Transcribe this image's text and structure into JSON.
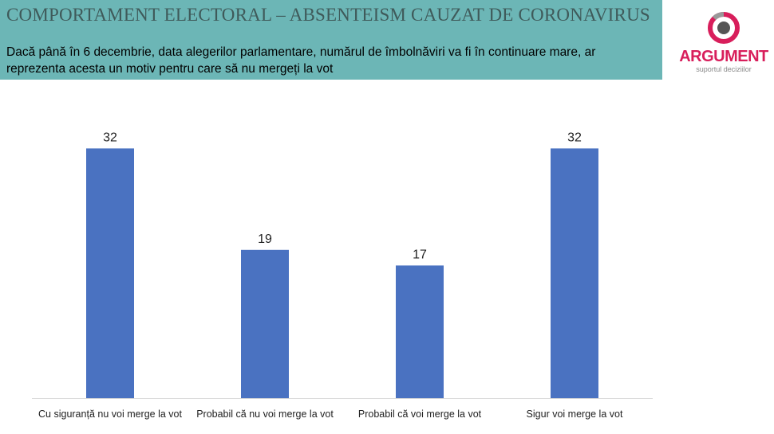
{
  "header": {
    "title": "COMPORTAMENT ELECTORAL – ABSENTEISM CAUZAT DE CORONAVIRUS",
    "subtitle": "Dacă până în 6 decembrie, data alegerilor parlamentare, numărul de îmbolnăviri va fi în continuare mare, ar reprezenta acesta un motiv pentru care să nu mergeți la vot"
  },
  "logo": {
    "name": "ARGUMENT",
    "tagline": "suportul deciziilor"
  },
  "colors": {
    "banner": "#6cb6b6",
    "bar": "#4a72c1",
    "logo": "#d81e5b"
  },
  "chart_data": {
    "type": "bar",
    "title": "",
    "categories": [
      "Cu siguranță nu voi merge la vot",
      "Probabil că nu voi merge la vot",
      "Probabil că voi merge la vot",
      "Sigur voi merge la vot"
    ],
    "values": [
      32,
      19,
      17,
      32
    ],
    "xlabel": "",
    "ylabel": "",
    "ylim": [
      0,
      33
    ],
    "grid": false,
    "legend": "none"
  }
}
